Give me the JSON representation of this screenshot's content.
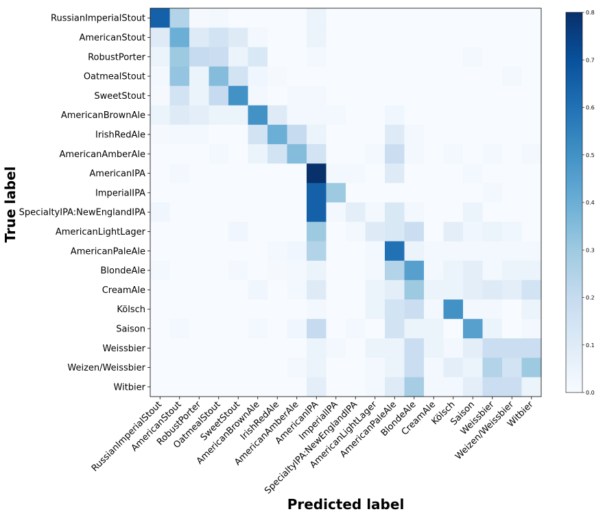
{
  "chart_data": {
    "type": "heatmap",
    "title": "",
    "xlabel": "Predicted label",
    "ylabel": "True label",
    "labels": [
      "RussianImperialStout",
      "AmericanStout",
      "RobustPorter",
      "OatmealStout",
      "SweetStout",
      "AmericanBrownAle",
      "IrishRedAle",
      "AmericanAmberAle",
      "AmericanIPA",
      "ImperialIPA",
      "SpecialtyIPA:NewEnglandIPA",
      "AmericanLightLager",
      "AmericanPaleAle",
      "BlondeAle",
      "CreamAle",
      "Kölsch",
      "Saison",
      "Weissbier",
      "Weizen/Weissbier",
      "Witbier"
    ],
    "colorbar": {
      "range": [
        0,
        0.8
      ],
      "ticks": [
        "0.0",
        "0.1",
        "0.2",
        "0.3",
        "0.4",
        "0.5",
        "0.6",
        "0.7",
        "0.8"
      ]
    },
    "colormap": [
      "#f7fbff",
      "#deebf7",
      "#c6dbef",
      "#9ecae1",
      "#6baed6",
      "#4292c6",
      "#2171b5",
      "#08519c",
      "#08306b"
    ],
    "matrix": [
      [
        0.65,
        0.25,
        0.01,
        0.02,
        0.0,
        0.0,
        0.0,
        0.0,
        0.05,
        0.0,
        0.0,
        0.0,
        0.0,
        0.0,
        0.0,
        0.0,
        0.0,
        0.0,
        0.0,
        0.0
      ],
      [
        0.1,
        0.4,
        0.1,
        0.15,
        0.1,
        0.02,
        0.0,
        0.0,
        0.05,
        0.0,
        0.0,
        0.0,
        0.0,
        0.0,
        0.0,
        0.0,
        0.0,
        0.0,
        0.0,
        0.0
      ],
      [
        0.05,
        0.3,
        0.2,
        0.18,
        0.05,
        0.12,
        0.0,
        0.0,
        0.02,
        0.0,
        0.0,
        0.0,
        0.0,
        0.0,
        0.0,
        0.0,
        0.02,
        0.0,
        0.0,
        0.0
      ],
      [
        0.02,
        0.32,
        0.05,
        0.35,
        0.15,
        0.03,
        0.01,
        0.0,
        0.0,
        0.0,
        0.0,
        0.0,
        0.0,
        0.0,
        0.0,
        0.0,
        0.0,
        0.0,
        0.02,
        0.0
      ],
      [
        0.01,
        0.15,
        0.05,
        0.2,
        0.5,
        0.02,
        0.0,
        0.02,
        0.02,
        0.0,
        0.0,
        0.0,
        0.0,
        0.0,
        0.0,
        0.0,
        0.0,
        0.0,
        0.0,
        0.0
      ],
      [
        0.05,
        0.1,
        0.08,
        0.05,
        0.05,
        0.5,
        0.1,
        0.02,
        0.02,
        0.02,
        0.0,
        0.0,
        0.03,
        0.0,
        0.0,
        0.0,
        0.0,
        0.0,
        0.0,
        0.0
      ],
      [
        0.01,
        0.02,
        0.02,
        0.0,
        0.0,
        0.15,
        0.4,
        0.2,
        0.05,
        0.0,
        0.0,
        0.0,
        0.1,
        0.02,
        0.0,
        0.0,
        0.0,
        0.0,
        0.0,
        0.0
      ],
      [
        0.0,
        0.0,
        0.0,
        0.02,
        0.0,
        0.05,
        0.15,
        0.35,
        0.15,
        0.0,
        0.0,
        0.02,
        0.18,
        0.02,
        0.0,
        0.02,
        0.0,
        0.02,
        0.0,
        0.02
      ],
      [
        0.0,
        0.02,
        0.0,
        0.0,
        0.0,
        0.0,
        0.0,
        0.0,
        0.8,
        0.02,
        0.02,
        0.0,
        0.1,
        0.0,
        0.0,
        0.0,
        0.02,
        0.0,
        0.0,
        0.0
      ],
      [
        0.0,
        0.0,
        0.0,
        0.0,
        0.0,
        0.0,
        0.0,
        0.0,
        0.65,
        0.3,
        0.0,
        0.0,
        0.0,
        0.0,
        0.0,
        0.0,
        0.0,
        0.02,
        0.0,
        0.0
      ],
      [
        0.03,
        0.0,
        0.0,
        0.0,
        0.0,
        0.0,
        0.0,
        0.0,
        0.65,
        0.02,
        0.08,
        0.02,
        0.12,
        0.02,
        0.0,
        0.0,
        0.05,
        0.0,
        0.0,
        0.0
      ],
      [
        0.0,
        0.0,
        0.0,
        0.0,
        0.03,
        0.0,
        0.0,
        0.0,
        0.3,
        0.0,
        0.02,
        0.1,
        0.12,
        0.18,
        0.0,
        0.08,
        0.03,
        0.05,
        0.03,
        0.0
      ],
      [
        0.0,
        0.0,
        0.0,
        0.0,
        0.0,
        0.0,
        0.02,
        0.03,
        0.25,
        0.0,
        0.0,
        0.02,
        0.6,
        0.05,
        0.02,
        0.02,
        0.02,
        0.02,
        0.02,
        0.02
      ],
      [
        0.02,
        0.0,
        0.0,
        0.0,
        0.02,
        0.0,
        0.01,
        0.02,
        0.05,
        0.0,
        0.0,
        0.02,
        0.25,
        0.45,
        0.02,
        0.05,
        0.08,
        0.02,
        0.05,
        0.05
      ],
      [
        0.0,
        0.0,
        0.0,
        0.0,
        0.0,
        0.03,
        0.0,
        0.02,
        0.1,
        0.0,
        0.0,
        0.05,
        0.08,
        0.3,
        0.05,
        0.05,
        0.08,
        0.1,
        0.08,
        0.15
      ],
      [
        0.0,
        0.0,
        0.0,
        0.0,
        0.0,
        0.0,
        0.0,
        0.0,
        0.02,
        0.0,
        0.0,
        0.05,
        0.15,
        0.18,
        0.02,
        0.5,
        0.02,
        0.02,
        0.0,
        0.05
      ],
      [
        0.0,
        0.02,
        0.0,
        0.0,
        0.0,
        0.02,
        0.0,
        0.03,
        0.2,
        0.0,
        0.02,
        0.0,
        0.15,
        0.05,
        0.05,
        0.0,
        0.45,
        0.05,
        0.0,
        0.02
      ],
      [
        0.0,
        0.0,
        0.0,
        0.0,
        0.0,
        0.0,
        0.0,
        0.0,
        0.05,
        0.02,
        0.0,
        0.05,
        0.05,
        0.18,
        0.05,
        0.02,
        0.08,
        0.18,
        0.18,
        0.18
      ],
      [
        0.0,
        0.0,
        0.0,
        0.0,
        0.0,
        0.0,
        0.0,
        0.02,
        0.05,
        0.0,
        0.0,
        0.02,
        0.05,
        0.18,
        0.02,
        0.08,
        0.05,
        0.25,
        0.15,
        0.3
      ],
      [
        0.0,
        0.0,
        0.0,
        0.0,
        0.0,
        0.0,
        0.0,
        0.0,
        0.08,
        0.0,
        0.0,
        0.02,
        0.1,
        0.28,
        0.02,
        0.02,
        0.08,
        0.18,
        0.18,
        0.05
      ]
    ]
  }
}
